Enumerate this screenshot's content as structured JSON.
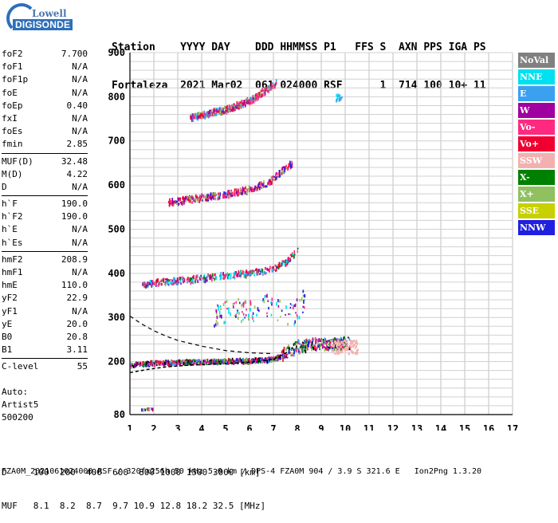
{
  "logo": {
    "line1": "Lowell",
    "line2": "DIGISONDE"
  },
  "header": {
    "line1": "Station    YYYY DAY    DDD HHMMSS P1   FFS S  AXN PPS IGA PS",
    "line2": "Fortaleza  2021 Mar02  061 024000 RSF      1  714 100 10+ 11"
  },
  "params_group1": [
    {
      "label": "foF2",
      "value": "7.700"
    },
    {
      "label": "foF1",
      "value": "N/A"
    },
    {
      "label": "foF1p",
      "value": "N/A"
    },
    {
      "label": "foE",
      "value": "N/A"
    },
    {
      "label": "foEp",
      "value": "0.40"
    },
    {
      "label": "fxI",
      "value": "N/A"
    },
    {
      "label": "foEs",
      "value": "N/A"
    },
    {
      "label": "fmin",
      "value": "2.85"
    }
  ],
  "params_group2": [
    {
      "label": "MUF(D)",
      "value": "32.48"
    },
    {
      "label": "M(D)",
      "value": "4.22"
    },
    {
      "label": "D",
      "value": "N/A"
    }
  ],
  "params_group3": [
    {
      "label": "h`F",
      "value": "190.0"
    },
    {
      "label": "h`F2",
      "value": "190.0"
    },
    {
      "label": "h`E",
      "value": "N/A"
    },
    {
      "label": "h`Es",
      "value": "N/A"
    }
  ],
  "params_group4": [
    {
      "label": "hmF2",
      "value": "208.9"
    },
    {
      "label": "hmF1",
      "value": "N/A"
    },
    {
      "label": "hmE",
      "value": "110.0"
    },
    {
      "label": "yF2",
      "value": "22.9"
    },
    {
      "label": "yF1",
      "value": "N/A"
    },
    {
      "label": "yE",
      "value": "20.0"
    },
    {
      "label": "B0",
      "value": "20.8"
    },
    {
      "label": "B1",
      "value": "3.11"
    }
  ],
  "params_group5": [
    {
      "label": "C-level",
      "value": "55"
    }
  ],
  "auto": {
    "line1": "Auto:",
    "line2": "Artist5",
    "line3": "500200"
  },
  "legend": [
    {
      "label": "NoVal",
      "color": "#808080"
    },
    {
      "label": "NNE",
      "color": "#00e0f0"
    },
    {
      "label": "E",
      "color": "#3aa0f0"
    },
    {
      "label": "W",
      "color": "#a000a0"
    },
    {
      "label": "Vo-",
      "color": "#ff2a80"
    },
    {
      "label": "Vo+",
      "color": "#f00030"
    },
    {
      "label": "SSW",
      "color": "#f4b0b0"
    },
    {
      "label": "X-",
      "color": "#008000"
    },
    {
      "label": "X+",
      "color": "#90c060"
    },
    {
      "label": "SSE",
      "color": "#c8d000"
    },
    {
      "label": "NNW",
      "color": "#2020e0"
    }
  ],
  "footer": {
    "line1": "D     100  200  400  600  800 1000 1500 3000 [km]",
    "line2": "MUF   8.1  8.2  8.7  9.7 10.9 12.8 18.2 32.5 [MHz]"
  },
  "fileline": "FZA0M_2021061024000.RSF / 320fx256h 50 kHz 5.0 km / DPS-4 FZA0M 904 / 3.9 S 321.6 E   Ion2Png 1.3.20",
  "chart_data": {
    "type": "scatter",
    "title": "",
    "xlabel": "",
    "ylabel": "",
    "xlim": [
      1,
      17
    ],
    "ylim": [
      80,
      900
    ],
    "x_ticks": [
      1,
      2,
      3,
      4,
      5,
      6,
      7,
      8,
      9,
      10,
      11,
      12,
      13,
      14,
      15,
      16,
      17
    ],
    "y_ticks": [
      80,
      200,
      300,
      400,
      500,
      600,
      700,
      800,
      900
    ],
    "grid": true,
    "traces": [
      {
        "name": "F-trace 1st",
        "x": [
          1.0,
          1.5,
          2,
          3,
          4,
          5,
          6,
          6.5,
          7,
          7.3,
          7.6,
          7.9,
          8.2,
          8.6,
          9.0,
          9.4,
          9.8,
          10.2
        ],
        "y": [
          192,
          194,
          196,
          197,
          199,
          200,
          201,
          203,
          205,
          212,
          222,
          232,
          235,
          238,
          238,
          240,
          240,
          242
        ]
      },
      {
        "name": "2nd hop",
        "x": [
          1.5,
          2,
          3,
          4,
          5,
          6,
          7,
          7.5,
          8
        ],
        "y": [
          375,
          378,
          383,
          388,
          393,
          400,
          410,
          425,
          450
        ]
      },
      {
        "name": "3rd hop",
        "x": [
          2.6,
          3,
          4,
          5,
          6,
          6.8,
          7.2,
          7.8
        ],
        "y": [
          560,
          563,
          570,
          578,
          590,
          605,
          625,
          650
        ]
      },
      {
        "name": "4th hop",
        "x": [
          3.5,
          4,
          5,
          6,
          6.5,
          7.1
        ],
        "y": [
          752,
          758,
          770,
          790,
          808,
          830
        ]
      },
      {
        "name": "scatter 300 km",
        "x": [
          4.5,
          5.2,
          6,
          6.6,
          7.2,
          7.8,
          8.3
        ],
        "y": [
          300,
          320,
          310,
          330,
          315,
          305,
          340
        ]
      },
      {
        "name": "low cluster",
        "x": [
          1.4,
          1.6,
          1.8,
          2.0
        ],
        "y": [
          91,
          91,
          92,
          92
        ]
      },
      {
        "name": "NNE spot",
        "x": [
          9.6,
          9.9
        ],
        "y": [
          797,
          800
        ]
      }
    ],
    "profile_line": {
      "x": [
        1.0,
        1.7,
        2.5,
        3.5,
        4.5,
        5.5,
        6.3,
        7.0,
        7.6
      ],
      "y": [
        175,
        182,
        188,
        192,
        194,
        197,
        200,
        205,
        222
      ]
    },
    "dashed_upper": {
      "x": [
        1.0,
        1.5,
        2.0,
        2.5,
        3.0,
        4.0,
        5.0,
        6.0,
        7.0
      ],
      "y": [
        303,
        285,
        270,
        258,
        248,
        235,
        225,
        220,
        218
      ]
    }
  }
}
